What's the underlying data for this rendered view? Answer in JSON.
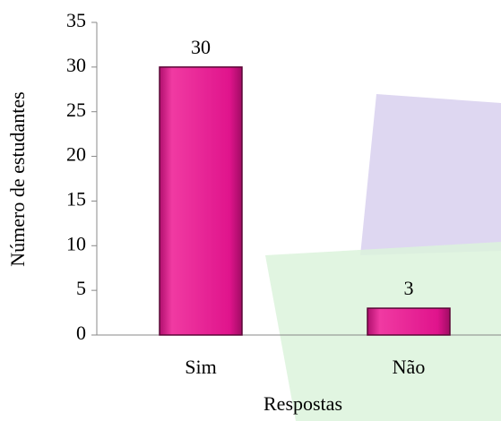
{
  "chart_data": {
    "type": "bar",
    "x_label": "Respostas",
    "y_label": "Número de estudantes",
    "categories": [
      "Sim",
      "Não"
    ],
    "values": [
      30,
      3
    ],
    "color": "#e0148c",
    "ylim": [
      0,
      35
    ],
    "yticks": [
      0,
      5,
      10,
      15,
      20,
      25,
      30,
      35
    ],
    "grid": false,
    "data_labels": true
  }
}
